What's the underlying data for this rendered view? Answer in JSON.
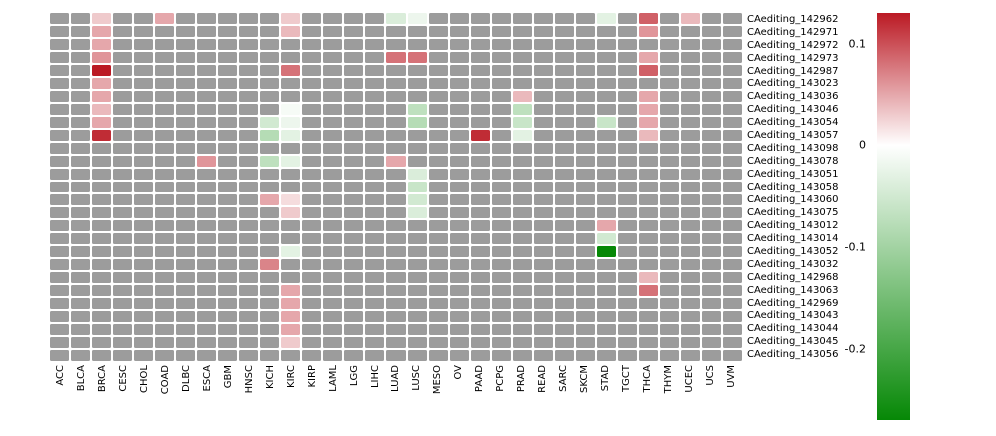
{
  "chart_data": {
    "type": "heatmap",
    "na_color": "#9c9c9c",
    "gap_color": "#ffffff",
    "columns": [
      "ACC",
      "BLCA",
      "BRCA",
      "CESC",
      "CHOL",
      "COAD",
      "DLBC",
      "ESCA",
      "GBM",
      "HNSC",
      "KICH",
      "KIRC",
      "KIRP",
      "LAML",
      "LGG",
      "LIHC",
      "LUAD",
      "LUSC",
      "MESO",
      "OV",
      "PAAD",
      "PCPG",
      "PRAD",
      "READ",
      "SARC",
      "SKCM",
      "STAD",
      "TGCT",
      "THCA",
      "THYM",
      "UCEC",
      "UCS",
      "UVM"
    ],
    "rows": [
      "CAediting_142962",
      "CAediting_142971",
      "CAediting_142972",
      "CAediting_142973",
      "CAediting_142987",
      "CAediting_143023",
      "CAediting_143036",
      "CAediting_143046",
      "CAediting_143054",
      "CAediting_143057",
      "CAediting_143098",
      "CAediting_143078",
      "CAediting_143051",
      "CAediting_143058",
      "CAediting_143060",
      "CAediting_143075",
      "CAediting_143012",
      "CAediting_143014",
      "CAediting_143052",
      "CAediting_143032",
      "CAediting_142968",
      "CAediting_143063",
      "CAediting_142969",
      "CAediting_143043",
      "CAediting_143044",
      "CAediting_143045",
      "CAediting_143056"
    ],
    "colorbar": {
      "vmax": 0.13,
      "vmin": -0.27,
      "tick_values": [
        0.1,
        0,
        -0.1,
        -0.2
      ],
      "tick_labels": [
        "0.1",
        "0",
        "-0.1",
        "-0.2"
      ],
      "positive_color": "#bb1a24",
      "zero_color": "#ffffff",
      "negative_color": "#068806"
    },
    "cells": [
      {
        "row": "CAediting_142962",
        "col": "BRCA",
        "value": 0.03
      },
      {
        "row": "CAediting_142962",
        "col": "COAD",
        "value": 0.05
      },
      {
        "row": "CAediting_142962",
        "col": "KIRC",
        "value": 0.03
      },
      {
        "row": "CAediting_142962",
        "col": "LUAD",
        "value": -0.04
      },
      {
        "row": "CAediting_142962",
        "col": "LUSC",
        "value": -0.02
      },
      {
        "row": "CAediting_142962",
        "col": "STAD",
        "value": -0.03
      },
      {
        "row": "CAediting_142962",
        "col": "THCA",
        "value": 0.09
      },
      {
        "row": "CAediting_142962",
        "col": "UCEC",
        "value": 0.04
      },
      {
        "row": "CAediting_142971",
        "col": "BRCA",
        "value": 0.05
      },
      {
        "row": "CAediting_142971",
        "col": "KIRC",
        "value": 0.04
      },
      {
        "row": "CAediting_142971",
        "col": "THCA",
        "value": 0.06
      },
      {
        "row": "CAediting_142972",
        "col": "BRCA",
        "value": 0.05
      },
      {
        "row": "CAediting_142973",
        "col": "BRCA",
        "value": 0.06
      },
      {
        "row": "CAediting_142973",
        "col": "LUAD",
        "value": 0.08
      },
      {
        "row": "CAediting_142973",
        "col": "LUSC",
        "value": 0.08
      },
      {
        "row": "CAediting_142973",
        "col": "THCA",
        "value": 0.05
      },
      {
        "row": "CAediting_142987",
        "col": "BRCA",
        "value": 0.13
      },
      {
        "row": "CAediting_142987",
        "col": "KIRC",
        "value": 0.08
      },
      {
        "row": "CAediting_142987",
        "col": "THCA",
        "value": 0.09
      },
      {
        "row": "CAediting_143023",
        "col": "BRCA",
        "value": 0.05
      },
      {
        "row": "CAediting_143036",
        "col": "BRCA",
        "value": 0.05
      },
      {
        "row": "CAediting_143036",
        "col": "PRAD",
        "value": 0.04
      },
      {
        "row": "CAediting_143036",
        "col": "THCA",
        "value": 0.05
      },
      {
        "row": "CAediting_143046",
        "col": "BRCA",
        "value": 0.04
      },
      {
        "row": "CAediting_143046",
        "col": "KIRC",
        "value": -0.01
      },
      {
        "row": "CAediting_143046",
        "col": "LUSC",
        "value": -0.07
      },
      {
        "row": "CAediting_143046",
        "col": "PRAD",
        "value": -0.07
      },
      {
        "row": "CAediting_143046",
        "col": "THCA",
        "value": 0.05
      },
      {
        "row": "CAediting_143054",
        "col": "BRCA",
        "value": 0.05
      },
      {
        "row": "CAediting_143054",
        "col": "KICH",
        "value": -0.05
      },
      {
        "row": "CAediting_143054",
        "col": "KIRC",
        "value": -0.02
      },
      {
        "row": "CAediting_143054",
        "col": "LUSC",
        "value": -0.08
      },
      {
        "row": "CAediting_143054",
        "col": "PRAD",
        "value": -0.06
      },
      {
        "row": "CAediting_143054",
        "col": "STAD",
        "value": -0.06
      },
      {
        "row": "CAediting_143054",
        "col": "THCA",
        "value": 0.05
      },
      {
        "row": "CAediting_143057",
        "col": "BRCA",
        "value": 0.12
      },
      {
        "row": "CAediting_143057",
        "col": "KICH",
        "value": -0.08
      },
      {
        "row": "CAediting_143057",
        "col": "KIRC",
        "value": -0.03
      },
      {
        "row": "CAediting_143057",
        "col": "PAAD",
        "value": 0.12
      },
      {
        "row": "CAediting_143057",
        "col": "PRAD",
        "value": -0.03
      },
      {
        "row": "CAediting_143057",
        "col": "THCA",
        "value": 0.04
      },
      {
        "row": "CAediting_143078",
        "col": "ESCA",
        "value": 0.06
      },
      {
        "row": "CAediting_143078",
        "col": "KICH",
        "value": -0.07
      },
      {
        "row": "CAediting_143078",
        "col": "KIRC",
        "value": -0.03
      },
      {
        "row": "CAediting_143078",
        "col": "LUAD",
        "value": 0.05
      },
      {
        "row": "CAediting_143051",
        "col": "LUSC",
        "value": -0.04
      },
      {
        "row": "CAediting_143058",
        "col": "LUSC",
        "value": -0.06
      },
      {
        "row": "CAediting_143060",
        "col": "KICH",
        "value": 0.05
      },
      {
        "row": "CAediting_143060",
        "col": "KIRC",
        "value": 0.02
      },
      {
        "row": "CAediting_143060",
        "col": "LUSC",
        "value": -0.05
      },
      {
        "row": "CAediting_143075",
        "col": "KIRC",
        "value": 0.03
      },
      {
        "row": "CAediting_143075",
        "col": "LUSC",
        "value": -0.04
      },
      {
        "row": "CAediting_143012",
        "col": "STAD",
        "value": 0.05
      },
      {
        "row": "CAediting_143014",
        "col": "STAD",
        "value": -0.05
      },
      {
        "row": "CAediting_143052",
        "col": "KIRC",
        "value": -0.03
      },
      {
        "row": "CAediting_143052",
        "col": "STAD",
        "value": -0.27
      },
      {
        "row": "CAediting_143032",
        "col": "KICH",
        "value": 0.07
      },
      {
        "row": "CAediting_142968",
        "col": "THCA",
        "value": 0.04
      },
      {
        "row": "CAediting_143063",
        "col": "KIRC",
        "value": 0.05
      },
      {
        "row": "CAediting_143063",
        "col": "THCA",
        "value": 0.08
      },
      {
        "row": "CAediting_142969",
        "col": "KIRC",
        "value": 0.05
      },
      {
        "row": "CAediting_143043",
        "col": "KIRC",
        "value": 0.05
      },
      {
        "row": "CAediting_143044",
        "col": "KIRC",
        "value": 0.05
      },
      {
        "row": "CAediting_143045",
        "col": "KIRC",
        "value": 0.03
      }
    ]
  }
}
